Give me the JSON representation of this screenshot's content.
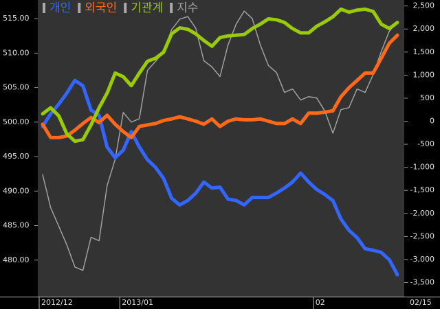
{
  "chart_data": {
    "type": "line",
    "categories": [
      "2012/12",
      null,
      null,
      null,
      null,
      null,
      null,
      null,
      null,
      null,
      "2013/01",
      null,
      null,
      null,
      null,
      null,
      null,
      null,
      null,
      null,
      null,
      null,
      null,
      null,
      null,
      null,
      null,
      null,
      null,
      null,
      null,
      null,
      null,
      null,
      "02",
      null,
      null,
      null,
      null,
      null,
      null,
      null,
      null,
      null,
      "02/15"
    ],
    "ylim": [
      474.7,
      517.7
    ],
    "yticks": [
      {
        "value": 480,
        "label": "480.00"
      },
      {
        "value": 485,
        "label": "485.00"
      },
      {
        "value": 490,
        "label": "490.00"
      },
      {
        "value": 495,
        "label": "495.00"
      },
      {
        "value": 500,
        "label": "500.00"
      },
      {
        "value": 505,
        "label": "505.00"
      },
      {
        "value": 510,
        "label": "510.00"
      },
      {
        "value": 515,
        "label": "515.00"
      }
    ],
    "y2lim": [
      -3805,
      2629
    ],
    "y2ticks": [
      {
        "value": -3500,
        "label": "-3,500"
      },
      {
        "value": -3000,
        "label": "-3,000"
      },
      {
        "value": -2500,
        "label": "-2,500"
      },
      {
        "value": -2000,
        "label": "-2,000"
      },
      {
        "value": -1500,
        "label": "-1,500"
      },
      {
        "value": -1000,
        "label": "-1,000"
      },
      -500,
      0,
      500,
      {
        "value": 1000,
        "label": "1,000"
      },
      {
        "value": 1500,
        "label": "1,500"
      },
      {
        "value": 2000,
        "label": "2,000"
      },
      {
        "value": 2500,
        "label": "2,500"
      }
    ],
    "series": [
      {
        "name": "개인",
        "color": "#3366ff",
        "axis": "y2",
        "values": [
          -113,
          160,
          370,
          610,
          885,
          770,
          240,
          130,
          -560,
          -790,
          -630,
          -225,
          -560,
          -835,
          -1000,
          -1240,
          -1670,
          -1815,
          -1720,
          -1560,
          -1320,
          -1450,
          -1430,
          -1690,
          -1720,
          -1815,
          -1655,
          -1655,
          -1655,
          -1560,
          -1450,
          -1320,
          -1125,
          -1320,
          -1480,
          -1590,
          -1720,
          -2120,
          -2365,
          -2525,
          -2765,
          -2800,
          -2845,
          -3005,
          -3330
        ]
      },
      {
        "name": "외국인",
        "color": "#ff6a1a",
        "axis": "y2",
        "values": [
          -65,
          -355,
          -355,
          -320,
          -195,
          -50,
          80,
          -30,
          130,
          -65,
          -225,
          -355,
          -115,
          -80,
          -50,
          15,
          50,
          95,
          50,
          0,
          -65,
          50,
          -115,
          0,
          50,
          30,
          30,
          50,
          0,
          -50,
          -50,
          50,
          -50,
          175,
          175,
          195,
          225,
          530,
          725,
          885,
          1045,
          1045,
          1365,
          1690,
          1865
        ]
      },
      {
        "name": "기관계",
        "color": "#99cc00",
        "axis": "y2",
        "values": [
          160,
          290,
          115,
          -275,
          -435,
          -400,
          -80,
          290,
          610,
          1045,
          965,
          770,
          1045,
          1300,
          1365,
          1495,
          1895,
          2025,
          1995,
          1895,
          1750,
          1625,
          1815,
          1850,
          1865,
          1880,
          2010,
          2105,
          2220,
          2200,
          2140,
          2010,
          1915,
          1915,
          2060,
          2155,
          2265,
          2430,
          2365,
          2410,
          2430,
          2380,
          2105,
          2010,
          2140
        ]
      },
      {
        "name": "지수",
        "color": "#a0a0a0",
        "values": [
          492.4,
          487.6,
          484.9,
          482.2,
          479.0,
          478.5,
          483.3,
          482.8,
          490.8,
          494.6,
          501.4,
          500.0,
          500.5,
          507.5,
          508.8,
          510.2,
          513.4,
          514.9,
          515.3,
          513.6,
          508.9,
          508.0,
          506.6,
          511.2,
          514.2,
          516.1,
          515.0,
          511.2,
          508.2,
          507.2,
          504.3,
          504.8,
          503.2,
          503.7,
          503.5,
          501.6,
          498.4,
          501.8,
          502.1,
          504.8,
          504.3,
          506.9,
          510.2,
          513.2,
          514.5
        ]
      }
    ]
  }
}
